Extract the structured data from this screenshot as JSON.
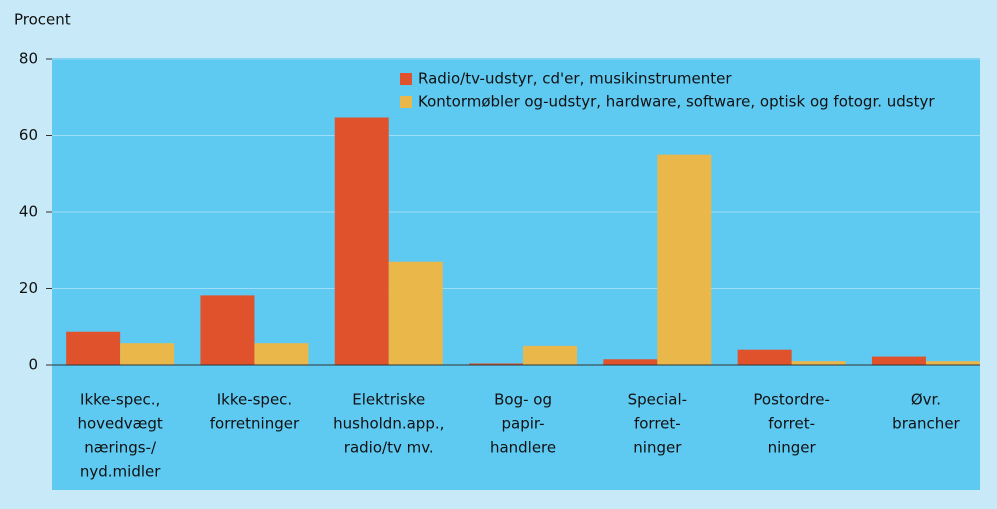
{
  "chart_data": {
    "type": "bar",
    "y_label": "Procent",
    "categories": [
      [
        "Ikke-spec.,",
        "hovedvægt",
        "nærings-/",
        "nyd.midler"
      ],
      [
        "Ikke-spec.",
        "forretninger"
      ],
      [
        "Elektriske",
        "husholdn.app.,",
        "radio/tv mv."
      ],
      [
        "Bog- og",
        "papir-",
        "handlere"
      ],
      [
        "Special-",
        "forret-",
        "ninger"
      ],
      [
        "Postordre-",
        "forret-",
        "ninger"
      ],
      [
        "Øvr.",
        "brancher"
      ]
    ],
    "series": [
      {
        "name": "Radio/tv-udstyr, cd'er, musikinstrumenter",
        "color": "#e0522b",
        "values": [
          8.7,
          18.2,
          64.7,
          0.4,
          1.5,
          4.0,
          2.2
        ]
      },
      {
        "name": "Kontormøbler og-udstyr, hardware, software, optisk og fotogr. udstyr",
        "color": "#eab84a",
        "values": [
          5.7,
          5.7,
          27.0,
          5.0,
          55.0,
          1.0,
          1.0
        ]
      }
    ],
    "ylim": [
      0,
      80
    ],
    "yticks": [
      0,
      20,
      40,
      60,
      80
    ],
    "grid": true
  }
}
